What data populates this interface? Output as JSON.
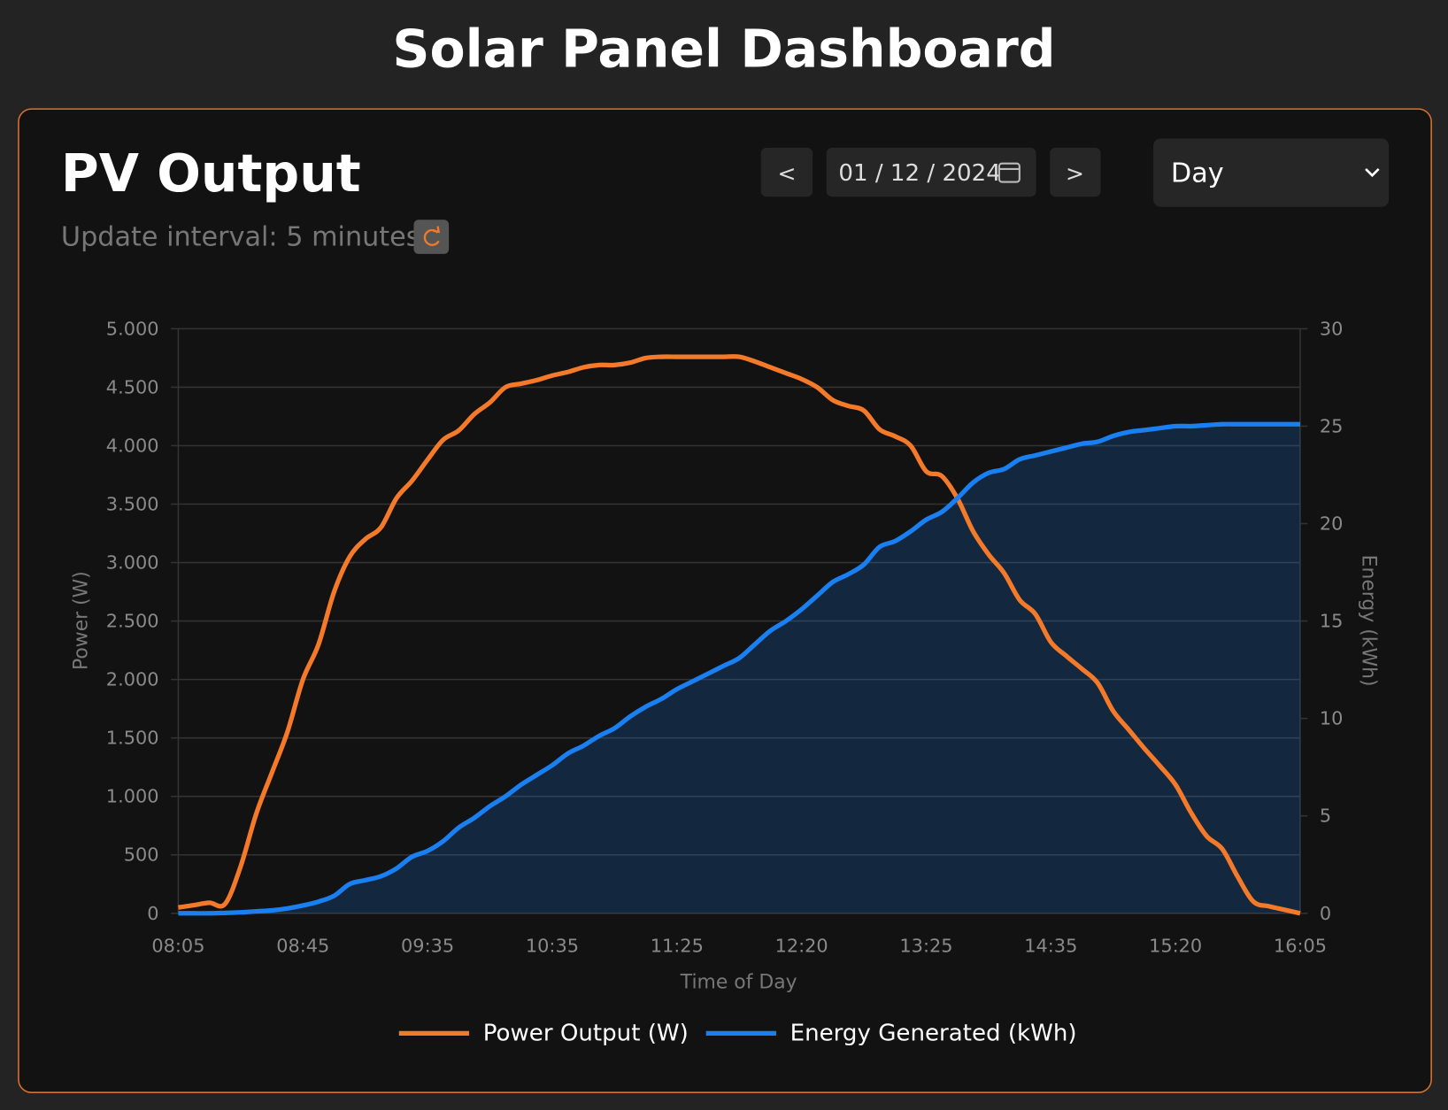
{
  "header": {
    "title": "Solar Panel Dashboard"
  },
  "panel": {
    "title": "PV Output",
    "update_interval": "Update interval: 5 minutes",
    "controls": {
      "prev": "<",
      "date": "01 / 12 / 2024",
      "next": ">",
      "period": "Day"
    }
  },
  "chart_data": {
    "type": "line",
    "x_label": "Time of Day",
    "y_label": "Power (W)",
    "y2_label": "Energy (kWh)",
    "categories": [
      "08:05",
      null,
      null,
      null,
      null,
      null,
      null,
      null,
      "08:45",
      null,
      null,
      null,
      null,
      null,
      null,
      null,
      "09:35",
      null,
      null,
      null,
      null,
      null,
      null,
      null,
      "10:35",
      null,
      null,
      null,
      null,
      null,
      null,
      null,
      "11:25",
      null,
      null,
      null,
      null,
      null,
      null,
      null,
      "12:20",
      null,
      null,
      null,
      null,
      null,
      null,
      null,
      "13:25",
      null,
      null,
      null,
      null,
      null,
      null,
      null,
      "14:35",
      null,
      null,
      null,
      null,
      null,
      null,
      null,
      "15:20",
      null,
      null,
      null,
      null,
      null,
      null,
      null,
      "16:05"
    ],
    "series": [
      {
        "name": "Power Output (W)",
        "color": "#f47a2a",
        "fill": false,
        "values": [
          50,
          70,
          90,
          80,
          400,
          850,
          1200,
          1550,
          2000,
          2300,
          2750,
          3050,
          3200,
          3300,
          3550,
          3700,
          3880,
          4050,
          4130,
          4270,
          4370,
          4500,
          4530,
          4560,
          4600,
          4630,
          4670,
          4690,
          4690,
          4710,
          4750,
          4760,
          4760,
          4760,
          4760,
          4760,
          4760,
          4720,
          4670,
          4620,
          4570,
          4500,
          4390,
          4340,
          4300,
          4140,
          4080,
          4000,
          3780,
          3740,
          3550,
          3270,
          3070,
          2910,
          2680,
          2560,
          2320,
          2200,
          2090,
          1970,
          1730,
          1570,
          1410,
          1260,
          1100,
          860,
          660,
          550,
          310,
          100,
          60,
          30,
          0
        ]
      },
      {
        "name": "Energy Generated (kWh)",
        "color": "#1a7ff0",
        "fill": true,
        "axis": "y2",
        "values": [
          0,
          0,
          0,
          0.02,
          0.05,
          0.1,
          0.15,
          0.25,
          0.4,
          0.6,
          0.9,
          1.5,
          1.7,
          1.9,
          2.3,
          2.9,
          3.2,
          3.7,
          4.4,
          4.9,
          5.5,
          6.0,
          6.6,
          7.1,
          7.6,
          8.2,
          8.6,
          9.1,
          9.5,
          10.1,
          10.6,
          11.0,
          11.5,
          11.9,
          12.3,
          12.7,
          13.1,
          13.8,
          14.5,
          15.0,
          15.6,
          16.3,
          17.0,
          17.4,
          17.9,
          18.8,
          19.1,
          19.6,
          20.2,
          20.6,
          21.3,
          22.1,
          22.6,
          22.8,
          23.3,
          23.5,
          23.7,
          23.9,
          24.1,
          24.2,
          24.5,
          24.7,
          24.8,
          24.9,
          25.0,
          25.0,
          25.05,
          25.1,
          25.1,
          25.1,
          25.1,
          25.1,
          25.1
        ]
      }
    ],
    "ylim": [
      0,
      5000
    ],
    "yticks": [
      0,
      500,
      {
        "value": 1000,
        "label": "1.000"
      },
      {
        "value": 1500,
        "label": "1.500"
      },
      {
        "value": 2000,
        "label": "2.000"
      },
      {
        "value": 2500,
        "label": "2.500"
      },
      {
        "value": 3000,
        "label": "3.000"
      },
      {
        "value": 3500,
        "label": "3.500"
      },
      {
        "value": 4000,
        "label": "4.000"
      },
      {
        "value": 4500,
        "label": "4.500"
      },
      {
        "value": 5000,
        "label": "5.000"
      }
    ],
    "y2lim": [
      0,
      30
    ],
    "y2ticks": [
      0,
      5,
      10,
      15,
      20,
      25,
      30
    ],
    "grid": true,
    "legend": "bottom"
  }
}
